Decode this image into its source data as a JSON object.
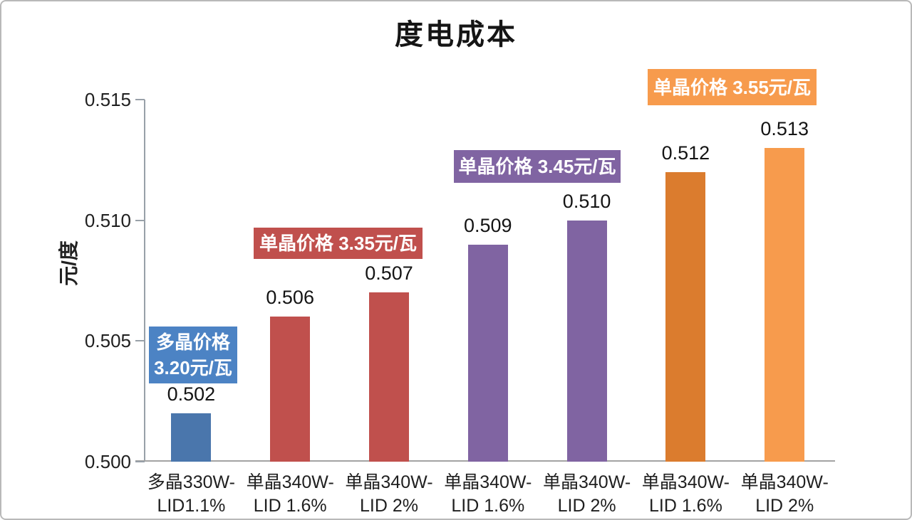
{
  "title": "度电成本",
  "y_axis": {
    "label": "元/度"
  },
  "chart_data": {
    "type": "bar",
    "title": "度电成本",
    "xlabel": "",
    "ylabel": "元/度",
    "ylim": [
      0.5,
      0.515
    ],
    "yticks": [
      0.5,
      0.505,
      0.51,
      0.515
    ],
    "ytick_labels": [
      "0.500",
      "0.505",
      "0.510",
      "0.515"
    ],
    "grid": false,
    "legend": "none",
    "categories": [
      [
        "多晶330W-",
        "LID1.1%"
      ],
      [
        "单晶340W-",
        "LID 1.6%"
      ],
      [
        "单晶340W-",
        "LID 2%"
      ],
      [
        "单晶340W-",
        "LID 1.6%"
      ],
      [
        "单晶340W-",
        "LID 2%"
      ],
      [
        "单晶340W-",
        "LID 1.6%"
      ],
      [
        "单晶340W-",
        "LID 2%"
      ]
    ],
    "values": [
      0.502,
      0.506,
      0.507,
      0.509,
      0.51,
      0.512,
      0.513
    ],
    "value_labels": [
      "0.502",
      "0.506",
      "0.507",
      "0.509",
      "0.510",
      "0.512",
      "0.513"
    ],
    "bar_colors": [
      "#4A76AC",
      "#C0504D",
      "#C0504D",
      "#8064A2",
      "#8064A2",
      "#DB7C2E",
      "#F79B4D"
    ],
    "annotations": [
      {
        "lines": [
          "多晶价格",
          "3.20元/瓦"
        ],
        "bg": "#4C83C4",
        "text_color": "#FFFFFF"
      },
      {
        "lines": [
          "单晶价格 3.35元/瓦"
        ],
        "bg": "#C0504D",
        "text_color": "#FFFFFF"
      },
      {
        "lines": [
          "单晶价格 3.45元/瓦"
        ],
        "bg": "#8064A2",
        "text_color": "#FFFFFF"
      },
      {
        "lines": [
          "单晶价格 3.55元/瓦"
        ],
        "bg": "#F79B4D",
        "text_color": "#FFFFFF"
      }
    ]
  }
}
